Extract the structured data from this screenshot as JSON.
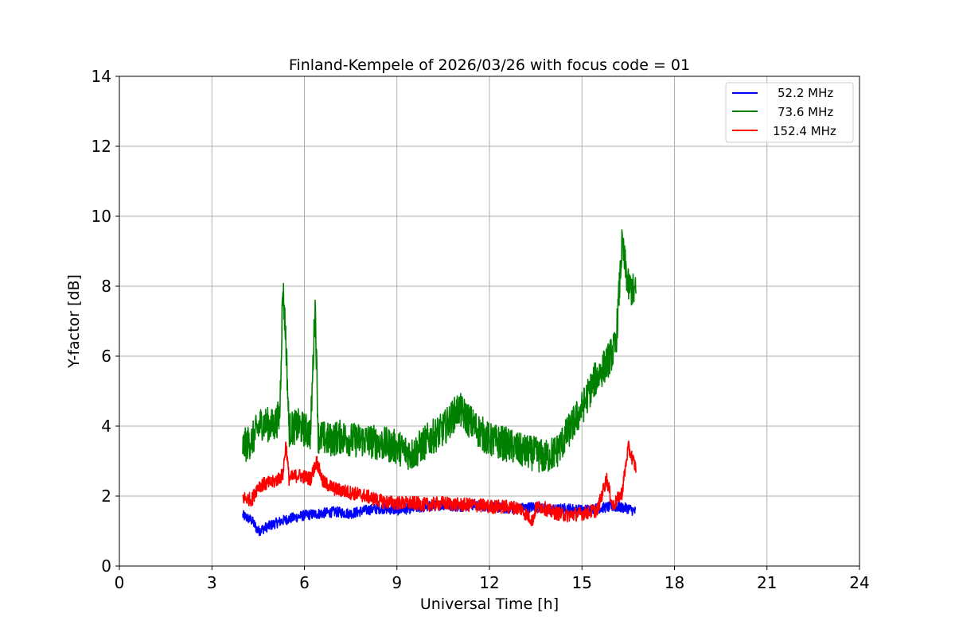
{
  "chart_data": {
    "type": "line",
    "title": "Finland-Kempele of 2026/03/26 with focus code = 01",
    "xlabel": "Universal Time [h]",
    "ylabel": "Y-factor [dB]",
    "xlim": [
      0,
      24
    ],
    "ylim": [
      0,
      14
    ],
    "x_ticks": [
      0,
      3,
      6,
      9,
      12,
      15,
      18,
      21,
      24
    ],
    "y_ticks": [
      0,
      2,
      4,
      6,
      8,
      10,
      12,
      14
    ],
    "x_tick_labels": [
      "0",
      "3",
      "6",
      "9",
      "12",
      "15",
      "18",
      "21",
      "24"
    ],
    "y_tick_labels": [
      "0",
      "2",
      "4",
      "6",
      "8",
      "10",
      "12",
      "14"
    ],
    "grid": true,
    "legend_position": "top-right",
    "series": [
      {
        "name": "52.2 MHz",
        "color": "#0000ff",
        "noise": 0.3,
        "x": [
          4.0,
          4.3,
          4.5,
          5.0,
          5.3,
          5.5,
          6.0,
          6.5,
          7.0,
          7.5,
          8.0,
          8.5,
          9.0,
          9.5,
          10.0,
          10.5,
          11.0,
          11.5,
          12.0,
          12.5,
          13.0,
          13.5,
          14.0,
          14.5,
          15.0,
          15.5,
          16.0,
          16.5,
          16.75
        ],
        "y": [
          1.45,
          1.3,
          1.0,
          1.2,
          1.3,
          1.35,
          1.45,
          1.5,
          1.55,
          1.5,
          1.6,
          1.65,
          1.6,
          1.65,
          1.7,
          1.75,
          1.7,
          1.75,
          1.7,
          1.65,
          1.65,
          1.7,
          1.6,
          1.65,
          1.6,
          1.65,
          1.7,
          1.65,
          1.55
        ]
      },
      {
        "name": "73.6 MHz",
        "color": "#008000",
        "noise": 1.0,
        "x": [
          4.0,
          4.3,
          4.6,
          5.0,
          5.2,
          5.3,
          5.4,
          5.5,
          5.8,
          6.2,
          6.35,
          6.45,
          6.8,
          7.2,
          7.6,
          8.0,
          8.5,
          9.0,
          9.5,
          10.0,
          10.5,
          11.0,
          11.5,
          12.0,
          12.5,
          13.0,
          13.5,
          13.8,
          14.2,
          14.6,
          15.0,
          15.4,
          15.8,
          16.1,
          16.3,
          16.5,
          16.75
        ],
        "y": [
          3.4,
          3.6,
          4.1,
          4.0,
          4.3,
          8.0,
          6.5,
          3.9,
          4.0,
          3.8,
          7.5,
          3.7,
          3.6,
          3.7,
          3.6,
          3.6,
          3.5,
          3.4,
          3.2,
          3.6,
          3.9,
          4.5,
          4.0,
          3.6,
          3.5,
          3.3,
          3.2,
          3.1,
          3.3,
          3.9,
          4.5,
          5.3,
          5.8,
          6.3,
          9.2,
          8.0,
          7.8
        ]
      },
      {
        "name": "152.4 MHz",
        "color": "#ff0000",
        "noise": 0.4,
        "x": [
          4.0,
          4.3,
          4.5,
          5.0,
          5.3,
          5.4,
          5.5,
          5.8,
          6.2,
          6.4,
          6.6,
          7.0,
          7.5,
          8.0,
          8.5,
          9.0,
          9.5,
          10.0,
          10.5,
          11.0,
          11.5,
          12.0,
          12.5,
          13.0,
          13.4,
          13.5,
          13.7,
          14.0,
          14.5,
          15.0,
          15.5,
          15.8,
          16.0,
          16.3,
          16.5,
          16.75
        ],
        "y": [
          1.95,
          1.9,
          2.3,
          2.4,
          2.6,
          3.5,
          2.5,
          2.6,
          2.5,
          3.0,
          2.4,
          2.2,
          2.1,
          2.0,
          1.85,
          1.8,
          1.8,
          1.75,
          1.8,
          1.75,
          1.75,
          1.7,
          1.7,
          1.65,
          1.3,
          1.65,
          1.7,
          1.55,
          1.45,
          1.5,
          1.6,
          2.5,
          1.7,
          2.1,
          3.4,
          2.8
        ]
      }
    ]
  }
}
